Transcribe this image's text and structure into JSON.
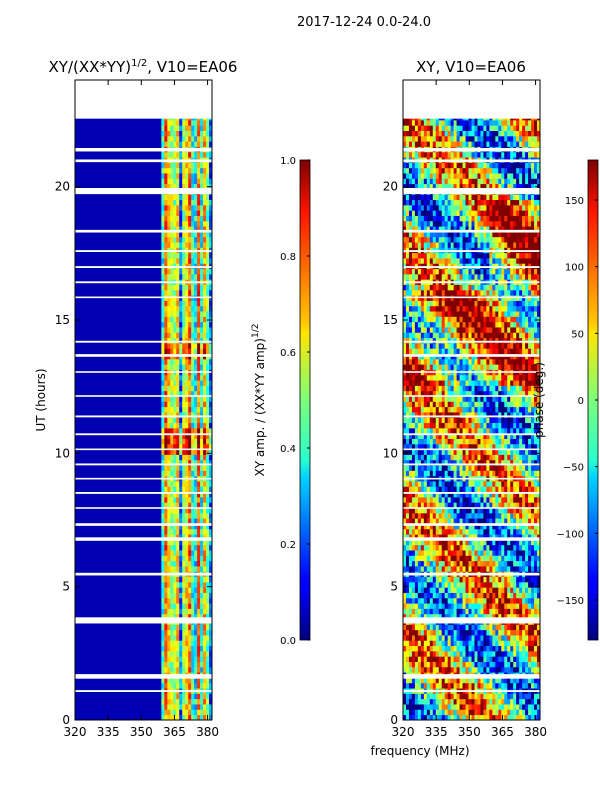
{
  "chart_data": {
    "suptitle": "2017-12-24 0.0-24.0",
    "shared_xlabel": "frequency (MHz)",
    "panels": [
      {
        "id": "amp",
        "type": "heatmap",
        "title": "XY/(XX*YY)^1/2, V10=EA06",
        "title_main": "XY/(XX*YY)",
        "title_sup": "1/2",
        "title_tail": ", V10=EA06",
        "ylabel": "UT (hours)",
        "xlim": [
          320,
          382
        ],
        "ylim": [
          0,
          24
        ],
        "xticks": [
          320,
          335,
          350,
          365,
          380
        ],
        "yticks": [
          0,
          5,
          10,
          15,
          20
        ],
        "data_ut_range": [
          0,
          22.7
        ],
        "mostly_zero_band_mhz": [
          320,
          358
        ],
        "signal_channels_mhz": [
          361,
          363,
          366,
          370,
          372,
          376,
          379
        ],
        "colorbar": {
          "label": "XY amp. / (XX*YY amp)^1/2",
          "label_main": "XY amp. / (XX*YY amp)",
          "label_sup": "1/2",
          "range": [
            0.0,
            1.0
          ],
          "ticks": [
            0.0,
            0.2,
            0.4,
            0.6,
            0.8,
            1.0
          ],
          "tick_labels": [
            "0.0",
            "0.2",
            "0.4",
            "0.6",
            "0.8",
            "1.0"
          ]
        }
      },
      {
        "id": "phase",
        "type": "heatmap",
        "title": "XY, V10=EA06",
        "ylabel": "",
        "xlim": [
          320,
          382
        ],
        "ylim": [
          0,
          24
        ],
        "xticks": [
          320,
          335,
          350,
          365,
          380
        ],
        "yticks": [
          0,
          5,
          10,
          15,
          20
        ],
        "data_ut_range": [
          0,
          22.7
        ],
        "colorbar": {
          "label": "phase (deg.)",
          "range": [
            -180,
            180
          ],
          "ticks": [
            -150,
            -100,
            -50,
            0,
            50,
            100,
            150
          ],
          "tick_labels": [
            "−150",
            "−100",
            "−50",
            "0",
            "50",
            "100",
            "150"
          ]
        }
      }
    ],
    "flagged_ut_bands_hours": [
      [
        22.55,
        22.75
      ],
      [
        21.32,
        21.45
      ],
      [
        20.92,
        21.02
      ],
      [
        19.72,
        19.95
      ],
      [
        18.28,
        18.38
      ],
      [
        17.55,
        17.62
      ],
      [
        16.95,
        17.02
      ],
      [
        16.38,
        16.45
      ],
      [
        15.82,
        15.88
      ],
      [
        14.15,
        14.22
      ],
      [
        13.62,
        13.72
      ],
      [
        13.02,
        13.08
      ],
      [
        12.12,
        12.18
      ],
      [
        11.35,
        11.42
      ],
      [
        10.68,
        10.75
      ],
      [
        10.12,
        10.18
      ],
      [
        9.55,
        9.62
      ],
      [
        9.02,
        9.08
      ],
      [
        8.48,
        8.55
      ],
      [
        7.92,
        7.98
      ],
      [
        7.28,
        7.38
      ],
      [
        6.72,
        6.85
      ],
      [
        5.42,
        5.52
      ],
      [
        3.62,
        3.85
      ],
      [
        1.55,
        1.72
      ],
      [
        1.05,
        1.12
      ]
    ]
  }
}
